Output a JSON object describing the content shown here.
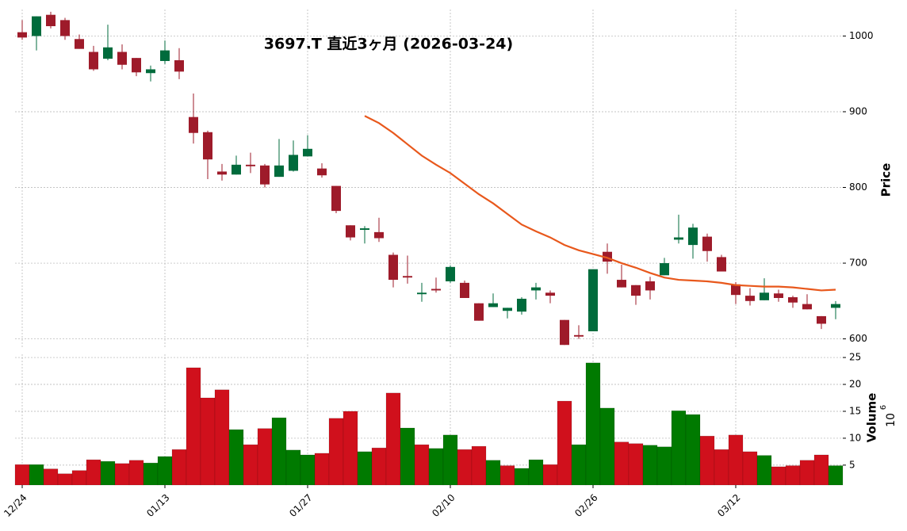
{
  "chart_data": {
    "type": "candlestick",
    "title": "3697.T 直近3ヶ月 (2026-03-24)",
    "categories": [
      "12/24",
      null,
      null,
      null,
      null,
      null,
      null,
      null,
      null,
      null,
      "01/13",
      null,
      null,
      null,
      null,
      null,
      null,
      null,
      null,
      null,
      "01/27",
      null,
      null,
      null,
      null,
      null,
      null,
      null,
      null,
      null,
      "02/10",
      null,
      null,
      null,
      null,
      null,
      null,
      null,
      null,
      null,
      "02/26",
      null,
      null,
      null,
      null,
      null,
      null,
      null,
      null,
      null,
      "03/12",
      null,
      null,
      null,
      null,
      null,
      null,
      null
    ],
    "open": [
      1005,
      1000,
      1028,
      1021,
      996,
      979,
      970,
      979,
      971,
      951,
      967,
      968,
      893,
      873,
      821,
      817,
      830,
      829,
      814,
      822,
      841,
      825,
      802,
      750,
      744,
      741,
      711,
      683,
      659,
      666,
      676,
      674,
      647,
      642,
      637,
      636,
      664,
      661,
      625,
      605,
      610,
      715,
      678,
      671,
      676,
      684,
      731,
      724,
      735,
      708,
      672,
      657,
      651,
      660,
      655,
      646,
      630,
      641
    ],
    "high": [
      1021,
      1026,
      1032,
      1024,
      1002,
      987,
      1015,
      989,
      971,
      961,
      994,
      984,
      924,
      875,
      831,
      842,
      846,
      831,
      864,
      862,
      869,
      832,
      802,
      750,
      749,
      760,
      714,
      710,
      674,
      681,
      697,
      677,
      647,
      660,
      641,
      655,
      674,
      664,
      625,
      618,
      692,
      726,
      698,
      671,
      682,
      707,
      764,
      752,
      739,
      711,
      675,
      667,
      680,
      665,
      657,
      659,
      630,
      650
    ],
    "low": [
      995,
      981,
      1010,
      995,
      983,
      954,
      968,
      956,
      947,
      940,
      963,
      943,
      858,
      811,
      809,
      817,
      819,
      800,
      814,
      821,
      841,
      813,
      766,
      730,
      726,
      728,
      668,
      673,
      649,
      661,
      674,
      654,
      624,
      642,
      627,
      632,
      652,
      647,
      592,
      600,
      610,
      686,
      668,
      645,
      652,
      684,
      726,
      706,
      702,
      689,
      646,
      644,
      651,
      649,
      641,
      639,
      613,
      626
    ],
    "close": [
      998,
      1026,
      1013,
      1000,
      983,
      956,
      985,
      962,
      952,
      956,
      981,
      953,
      872,
      837,
      817,
      830,
      828,
      804,
      829,
      843,
      851,
      816,
      769,
      734,
      746,
      733,
      678,
      681,
      661,
      664,
      695,
      654,
      624,
      647,
      641,
      653,
      668,
      657,
      592,
      603,
      692,
      702,
      668,
      657,
      664,
      700,
      734,
      747,
      716,
      689,
      658,
      650,
      661,
      654,
      648,
      639,
      620,
      646
    ],
    "up_color": "#006b3c",
    "down_color": "#9e1b2a",
    "ma": {
      "color": "#e8581c",
      "values": [
        null,
        null,
        null,
        null,
        null,
        null,
        null,
        null,
        null,
        null,
        null,
        null,
        null,
        null,
        null,
        null,
        null,
        null,
        null,
        null,
        null,
        null,
        null,
        null,
        894.5,
        885,
        872,
        857,
        842,
        830,
        819,
        805,
        791,
        779,
        765,
        751,
        742,
        734,
        724,
        717,
        712,
        707,
        700,
        694,
        687,
        681,
        678,
        677,
        676,
        674,
        671,
        670,
        669,
        669,
        668,
        666,
        664,
        665
      ]
    },
    "ylim": [
      587,
      1035
    ],
    "yticks": [
      600,
      700,
      800,
      900,
      1000
    ],
    "ylabel": "Price",
    "grid": true,
    "volume": {
      "values": [
        5.1,
        5.1,
        4.3,
        3.4,
        4.0,
        6.0,
        5.7,
        5.3,
        5.9,
        5.4,
        6.6,
        7.9,
        23.1,
        17.5,
        19.0,
        11.6,
        8.8,
        11.8,
        13.8,
        7.8,
        6.9,
        7.2,
        13.7,
        15.0,
        7.5,
        8.2,
        18.4,
        11.9,
        8.8,
        8.1,
        10.6,
        7.9,
        8.5,
        5.9,
        4.9,
        4.4,
        6.0,
        5.1,
        16.9,
        8.8,
        24.0,
        15.6,
        9.3,
        9.0,
        8.7,
        8.4,
        15.1,
        14.4,
        10.4,
        7.9,
        10.6,
        7.5,
        6.8,
        4.7,
        4.9,
        5.9,
        6.9,
        4.9
      ],
      "colors": [
        "#d0101c",
        "#007a00",
        "#d0101c",
        "#d0101c",
        "#d0101c",
        "#d0101c",
        "#007a00",
        "#d0101c",
        "#d0101c",
        "#007a00",
        "#007a00",
        "#d0101c",
        "#d0101c",
        "#d0101c",
        "#d0101c",
        "#007a00",
        "#d0101c",
        "#d0101c",
        "#007a00",
        "#007a00",
        "#007a00",
        "#d0101c",
        "#d0101c",
        "#d0101c",
        "#007a00",
        "#d0101c",
        "#d0101c",
        "#007a00",
        "#d0101c",
        "#007a00",
        "#007a00",
        "#d0101c",
        "#d0101c",
        "#007a00",
        "#d0101c",
        "#007a00",
        "#007a00",
        "#d0101c",
        "#d0101c",
        "#007a00",
        "#007a00",
        "#007a00",
        "#d0101c",
        "#d0101c",
        "#007a00",
        "#007a00",
        "#007a00",
        "#007a00",
        "#d0101c",
        "#d0101c",
        "#d0101c",
        "#d0101c",
        "#007a00",
        "#d0101c",
        "#d0101c",
        "#d0101c",
        "#d0101c",
        "#007a00"
      ],
      "ylim": [
        1.3,
        25.6
      ],
      "yticks": [
        5,
        10,
        15,
        20,
        25
      ],
      "ylabel": "Volume",
      "exponent_base": "10",
      "exponent_power": "6"
    }
  }
}
